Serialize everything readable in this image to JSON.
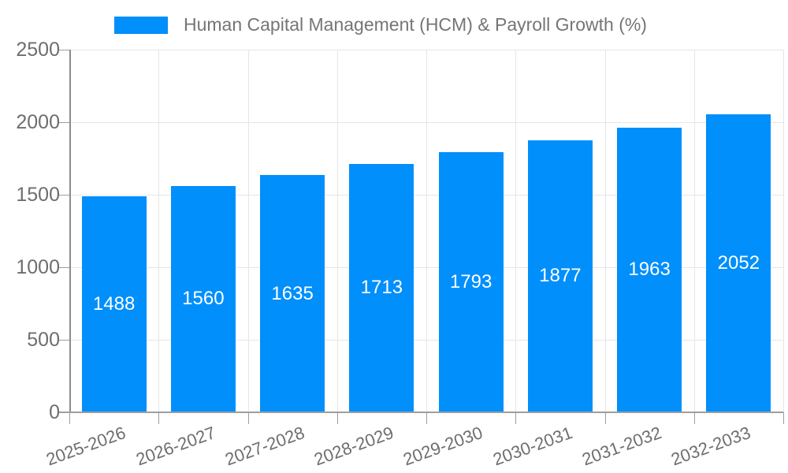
{
  "legend": {
    "label": "Human Capital Management (HCM) & Payroll Growth (%)"
  },
  "chart_data": {
    "type": "bar",
    "title": "Human Capital Management (HCM) & Payroll Growth (%)",
    "categories": [
      "2025-2026",
      "2026-2027",
      "2027-2028",
      "2028-2029",
      "2029-2030",
      "2030-2031",
      "2031-2032",
      "2032-2033"
    ],
    "values": [
      1488,
      1560,
      1635,
      1713,
      1793,
      1877,
      1963,
      2052
    ],
    "value_labels": [
      "1488",
      "1560",
      "1635",
      "1713",
      "1793",
      "1877",
      "1963",
      "2052"
    ],
    "xlabel": "",
    "ylabel": "",
    "ylim": [
      0,
      2500
    ],
    "yticks": [
      0,
      500,
      1000,
      1500,
      2000,
      2500
    ],
    "grid": true,
    "legend_position": "top",
    "bar_color": "#008FFB",
    "value_label_color": "#ffffff"
  },
  "colors": {
    "bar": "#008FFB",
    "gridline": "#e6e6e6",
    "axis_line": "#8c8c8c",
    "tick": "#9e9e9e",
    "axis_text": "#6e6e6e",
    "legend_text": "#757575",
    "background": "#ffffff"
  }
}
